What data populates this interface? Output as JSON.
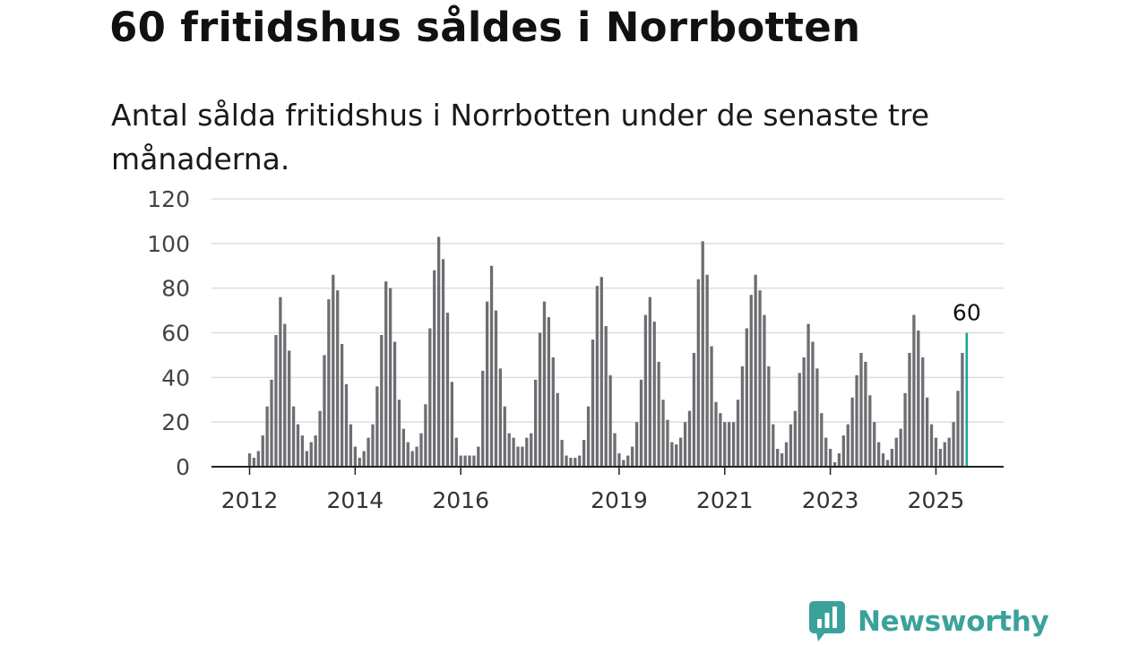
{
  "header": {
    "title": "60 fritidshus såldes i Norrbotten",
    "subtitle": "Antal sålda fritidshus i Norrbotten under de senaste tre månaderna."
  },
  "brand": {
    "name": "Newsworthy",
    "color": "#3aa29b"
  },
  "colors": {
    "bar": "#6e6d72",
    "highlight": "#1aa39b",
    "grid": "#dddddd",
    "axis": "#222222"
  },
  "chart_data": {
    "type": "bar",
    "title": "60 fritidshus såldes i Norrbotten",
    "subtitle": "Antal sålda fritidshus i Norrbotten under de senaste tre månaderna.",
    "xlabel": "",
    "ylabel": "",
    "ylim": [
      0,
      120
    ],
    "yticks": [
      0,
      20,
      40,
      60,
      80,
      100,
      120
    ],
    "grid": true,
    "x_start": "2012-01",
    "x_tick_labels": [
      {
        "label": "2012",
        "month_index": 0
      },
      {
        "label": "2014",
        "month_index": 24
      },
      {
        "label": "2016",
        "month_index": 48
      },
      {
        "label": "2019",
        "month_index": 84
      },
      {
        "label": "2021",
        "month_index": 108
      },
      {
        "label": "2023",
        "month_index": 132
      },
      {
        "label": "2025",
        "month_index": 156
      }
    ],
    "values": [
      6,
      4,
      7,
      14,
      27,
      39,
      59,
      76,
      64,
      52,
      27,
      19,
      14,
      7,
      11,
      14,
      25,
      50,
      75,
      86,
      79,
      55,
      37,
      19,
      9,
      4,
      7,
      13,
      19,
      36,
      59,
      83,
      80,
      56,
      30,
      17,
      11,
      7,
      9,
      15,
      28,
      62,
      88,
      103,
      93,
      69,
      38,
      13,
      5,
      5,
      5,
      5,
      9,
      43,
      74,
      90,
      70,
      44,
      27,
      15,
      13,
      9,
      9,
      13,
      15,
      39,
      60,
      74,
      67,
      49,
      33,
      12,
      5,
      4,
      4,
      5,
      12,
      27,
      57,
      81,
      85,
      63,
      41,
      15,
      6,
      3,
      5,
      9,
      20,
      39,
      68,
      76,
      65,
      47,
      30,
      21,
      11,
      10,
      13,
      20,
      25,
      51,
      84,
      101,
      86,
      54,
      29,
      24,
      20,
      20,
      20,
      30,
      45,
      62,
      77,
      86,
      79,
      68,
      45,
      19,
      8,
      6,
      11,
      19,
      25,
      42,
      49,
      64,
      56,
      44,
      24,
      13,
      8,
      2,
      6,
      14,
      19,
      31,
      41,
      51,
      47,
      32,
      20,
      11,
      6,
      3,
      8,
      13,
      17,
      33,
      51,
      68,
      61,
      49,
      31,
      19,
      13,
      8,
      11,
      13,
      20,
      34,
      51,
      60
    ],
    "highlight": {
      "index": 163,
      "value": 60,
      "label": "60"
    }
  }
}
